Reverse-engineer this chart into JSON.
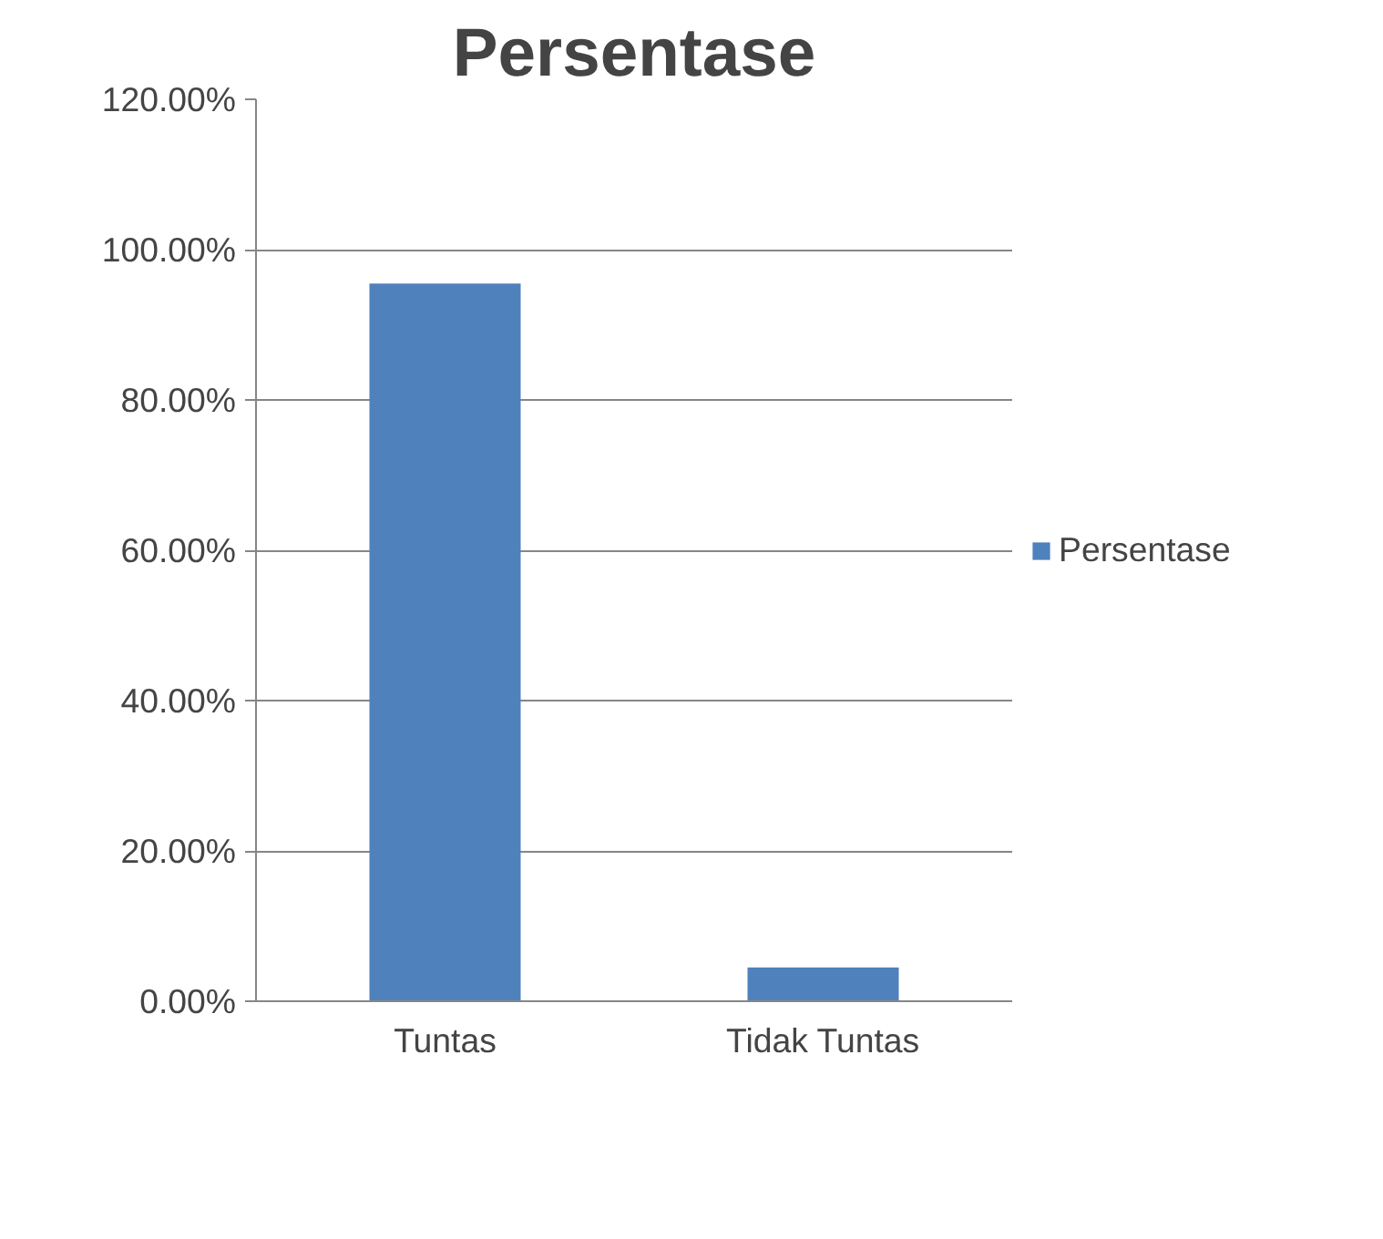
{
  "chart_data": {
    "type": "bar",
    "title": "Persentase",
    "categories": [
      "Tuntas",
      "Tidak Tuntas"
    ],
    "series": [
      {
        "name": "Persentase",
        "color": "#4f81bd",
        "values": [
          95.5,
          4.5
        ]
      }
    ],
    "ylim": [
      0,
      120
    ],
    "yticks": [
      {
        "value": 0,
        "label": "0.00%"
      },
      {
        "value": 20,
        "label": "20.00%"
      },
      {
        "value": 40,
        "label": "40.00%"
      },
      {
        "value": 60,
        "label": "60.00%"
      },
      {
        "value": 80,
        "label": "80.00%"
      },
      {
        "value": 100,
        "label": "100.00%"
      },
      {
        "value": 120,
        "label": "120.00%"
      }
    ],
    "grid": "y",
    "legend": "right"
  }
}
